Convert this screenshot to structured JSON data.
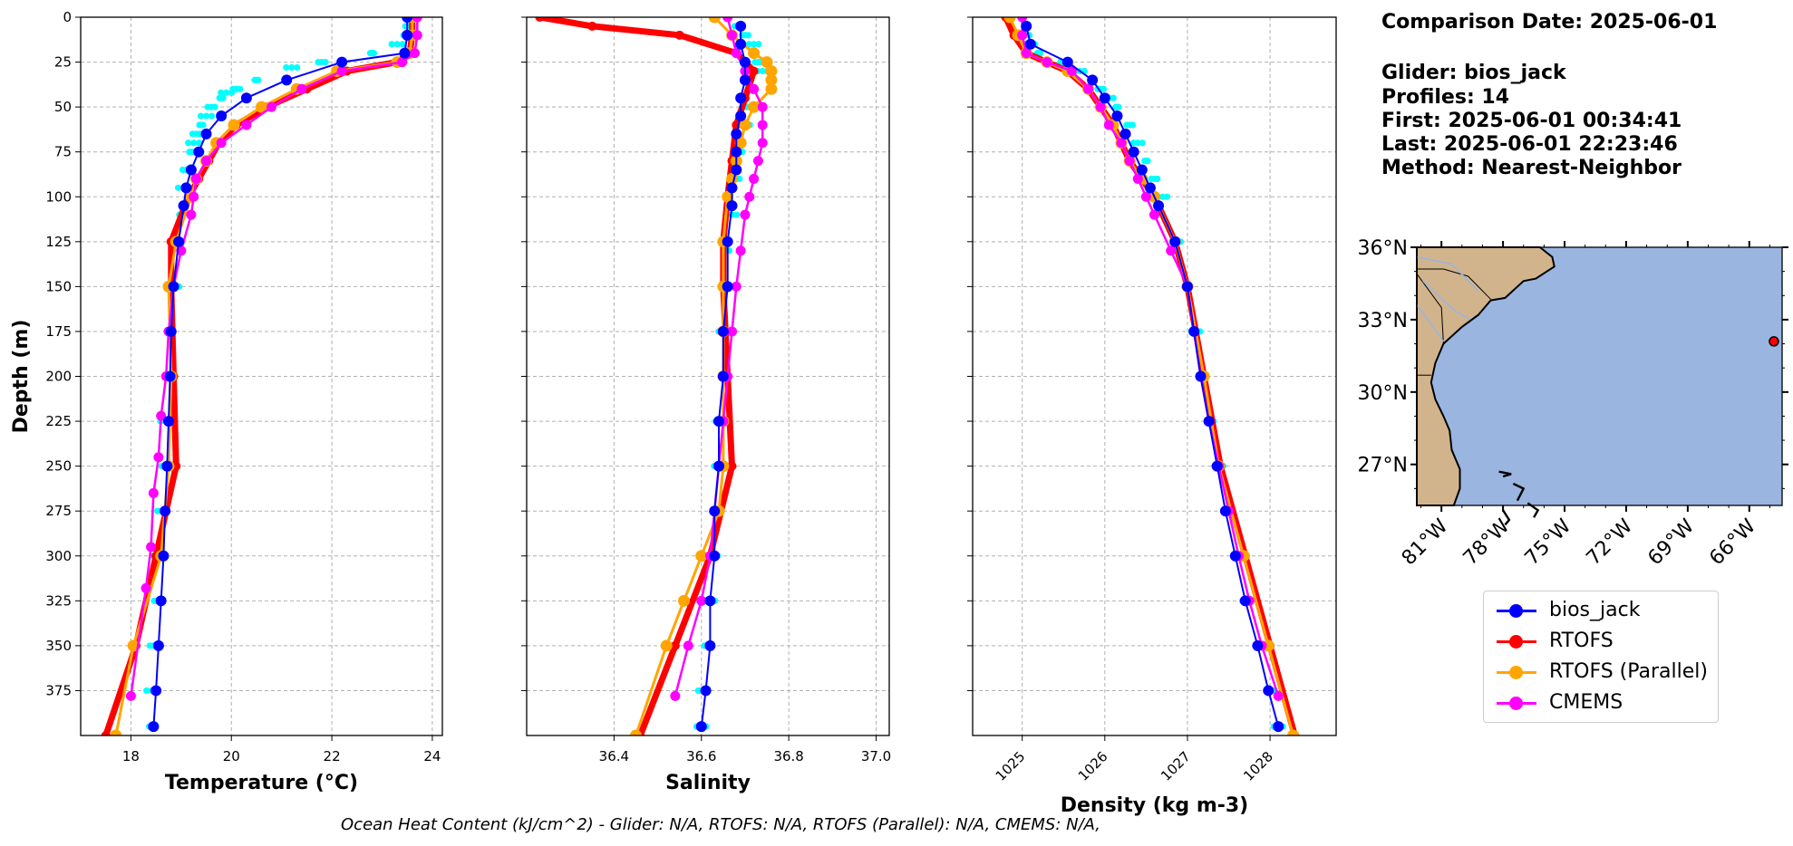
{
  "info": {
    "comparison_date": "Comparison Date: 2025-06-01",
    "glider": "Glider: bios_jack",
    "profiles": "Profiles: 14",
    "first": "First: 2025-06-01 00:34:41",
    "last": "Last: 2025-06-01 22:23:46",
    "method": "Method: Nearest-Neighbor"
  },
  "footer": "Ocean Heat Content (kJ/cm^2) - Glider: N/A,  RTOFS: N/A,  RTOFS (Parallel): N/A,  CMEMS: N/A,",
  "legend": [
    {
      "name": "bios_jack",
      "color": "#0000ff"
    },
    {
      "name": "RTOFS",
      "color": "#ff0000"
    },
    {
      "name": "RTOFS (Parallel)",
      "color": "#ffa500"
    },
    {
      "name": "CMEMS",
      "color": "#ff00ff"
    }
  ],
  "colors": {
    "glider_scatter": "#00ffff",
    "land": "#d2b48c",
    "ocean": "#9ab5e0",
    "grid": "#b0b0b0"
  },
  "chart_data": [
    {
      "type": "line",
      "xlabel": "Temperature (°C)",
      "ylabel": "Depth (m)",
      "xlim": [
        17,
        24.2
      ],
      "ylim": [
        400,
        0
      ],
      "xticks": [
        18,
        20,
        22,
        24
      ],
      "yticks": [
        0,
        25,
        50,
        75,
        100,
        125,
        150,
        175,
        200,
        225,
        250,
        275,
        300,
        325,
        350,
        375
      ],
      "grid": true,
      "scatter": {
        "name": "bios_jack profiles",
        "depth": [
          5,
          10,
          15,
          20,
          25,
          28,
          35,
          40,
          42,
          45,
          50,
          55,
          60,
          65,
          70,
          75,
          85,
          95,
          110,
          125,
          150,
          175,
          200,
          225,
          250,
          275,
          300,
          325,
          350,
          375,
          395
        ],
        "x": [
          23.5,
          23.5,
          23.3,
          22.8,
          21.8,
          21.2,
          20.5,
          20.1,
          19.9,
          19.8,
          19.6,
          19.5,
          19.4,
          19.3,
          19.25,
          19.2,
          19.1,
          19.05,
          19.0,
          18.95,
          18.85,
          18.8,
          18.75,
          18.7,
          18.65,
          18.6,
          18.55,
          18.5,
          18.45,
          18.42,
          18.4
        ]
      },
      "series": [
        {
          "name": "bios_jack",
          "depth": [
            0,
            10,
            20,
            25,
            35,
            45,
            55,
            65,
            75,
            85,
            95,
            105,
            125,
            150,
            175,
            200,
            225,
            250,
            275,
            300,
            325,
            350,
            375,
            395
          ],
          "values": [
            23.5,
            23.5,
            23.45,
            22.2,
            21.1,
            20.3,
            19.8,
            19.5,
            19.35,
            19.2,
            19.1,
            19.05,
            18.95,
            18.85,
            18.8,
            18.78,
            18.75,
            18.72,
            18.68,
            18.65,
            18.6,
            18.55,
            18.5,
            18.45
          ]
        },
        {
          "name": "RTOFS",
          "depth": [
            0,
            10,
            20,
            25,
            30,
            40,
            50,
            60,
            70,
            80,
            90,
            100,
            125,
            150,
            200,
            250,
            300,
            350,
            400
          ],
          "values": [
            23.6,
            23.6,
            23.55,
            23.3,
            22.3,
            21.5,
            20.7,
            20.1,
            19.75,
            19.55,
            19.35,
            19.15,
            18.8,
            18.8,
            18.85,
            18.9,
            18.5,
            18.1,
            17.5
          ]
        },
        {
          "name": "RTOFS (Parallel)",
          "depth": [
            0,
            10,
            20,
            25,
            30,
            40,
            50,
            60,
            70,
            80,
            90,
            100,
            125,
            150,
            200,
            250,
            300,
            350,
            400
          ],
          "values": [
            23.6,
            23.6,
            23.55,
            23.3,
            22.1,
            21.3,
            20.6,
            20.05,
            19.7,
            19.5,
            19.3,
            19.2,
            18.9,
            18.75,
            18.8,
            18.75,
            18.6,
            18.05,
            17.7
          ]
        },
        {
          "name": "CMEMS",
          "depth": [
            0,
            10,
            20,
            25,
            30,
            40,
            50,
            60,
            70,
            80,
            90,
            100,
            110,
            130,
            150,
            175,
            200,
            222,
            245,
            265,
            295,
            318,
            378
          ],
          "values": [
            23.7,
            23.7,
            23.65,
            23.4,
            22.2,
            21.4,
            20.8,
            20.3,
            19.8,
            19.5,
            19.3,
            19.25,
            19.2,
            19.0,
            18.85,
            18.75,
            18.7,
            18.6,
            18.55,
            18.45,
            18.4,
            18.3,
            18.0
          ]
        }
      ]
    },
    {
      "type": "line",
      "xlabel": "Salinity",
      "ylabel": "",
      "xlim": [
        36.2,
        37.03
      ],
      "ylim": [
        400,
        0
      ],
      "xticks": [
        36.4,
        36.6,
        36.8,
        37.0
      ],
      "yticks": [
        0,
        25,
        50,
        75,
        100,
        125,
        150,
        175,
        200,
        225,
        250,
        275,
        300,
        325,
        350,
        375
      ],
      "grid": true,
      "scatter": {
        "name": "bios_jack profiles",
        "depth": [
          5,
          10,
          15,
          20,
          25,
          30,
          40,
          50,
          60,
          75,
          90,
          110,
          130,
          150,
          175,
          200,
          225,
          250,
          275,
          300,
          325,
          350,
          375,
          395
        ],
        "x": [
          36.68,
          36.7,
          36.72,
          36.72,
          36.73,
          36.74,
          36.72,
          36.71,
          36.7,
          36.69,
          36.68,
          36.67,
          36.66,
          36.66,
          36.65,
          36.65,
          36.64,
          36.64,
          36.63,
          36.63,
          36.62,
          36.61,
          36.6,
          36.6
        ]
      },
      "series": [
        {
          "name": "bios_jack",
          "depth": [
            5,
            15,
            25,
            35,
            45,
            55,
            65,
            75,
            85,
            95,
            105,
            125,
            150,
            175,
            200,
            225,
            250,
            275,
            300,
            325,
            350,
            375,
            395
          ],
          "values": [
            36.69,
            36.69,
            36.7,
            36.7,
            36.69,
            36.69,
            36.68,
            36.68,
            36.68,
            36.67,
            36.67,
            36.66,
            36.66,
            36.65,
            36.65,
            36.64,
            36.64,
            36.63,
            36.63,
            36.62,
            36.62,
            36.61,
            36.6
          ]
        },
        {
          "name": "RTOFS",
          "depth": [
            0,
            5,
            10,
            20,
            30,
            45,
            60,
            80,
            100,
            125,
            150,
            200,
            250,
            300,
            350,
            400
          ],
          "values": [
            36.23,
            36.35,
            36.55,
            36.68,
            36.72,
            36.7,
            36.68,
            36.67,
            36.66,
            36.65,
            36.65,
            36.66,
            36.67,
            36.62,
            36.54,
            36.46
          ]
        },
        {
          "name": "RTOFS (Parallel)",
          "depth": [
            0,
            10,
            20,
            25,
            30,
            35,
            40,
            50,
            60,
            70,
            80,
            90,
            100,
            125,
            150,
            175,
            200,
            225,
            250,
            275,
            300,
            325,
            350,
            400
          ],
          "values": [
            36.63,
            36.67,
            36.72,
            36.75,
            36.76,
            36.76,
            36.76,
            36.72,
            36.7,
            36.69,
            36.68,
            36.67,
            36.66,
            36.65,
            36.65,
            36.65,
            36.65,
            36.65,
            36.65,
            36.64,
            36.6,
            36.56,
            36.52,
            36.45
          ]
        },
        {
          "name": "CMEMS",
          "depth": [
            0,
            10,
            20,
            30,
            40,
            50,
            60,
            70,
            80,
            90,
            100,
            110,
            130,
            150,
            175,
            200,
            225,
            250,
            275,
            300,
            325,
            350,
            378
          ],
          "values": [
            36.66,
            36.67,
            36.68,
            36.7,
            36.72,
            36.74,
            36.74,
            36.74,
            36.73,
            36.72,
            36.71,
            36.7,
            36.69,
            36.68,
            36.67,
            36.66,
            36.65,
            36.64,
            36.63,
            36.62,
            36.6,
            36.57,
            36.54
          ]
        }
      ]
    },
    {
      "type": "line",
      "xlabel": "Density (kg m-3)",
      "ylabel": "",
      "xlim": [
        1024.4,
        1028.8
      ],
      "ylim": [
        400,
        0
      ],
      "xticks": [
        1025,
        1026,
        1027,
        1028
      ],
      "yticks": [
        0,
        25,
        50,
        75,
        100,
        125,
        150,
        175,
        200,
        225,
        250,
        275,
        300,
        325,
        350,
        375
      ],
      "grid": true,
      "scatter": {
        "name": "bios_jack profiles",
        "depth": [
          5,
          10,
          15,
          20,
          25,
          30,
          35,
          40,
          45,
          50,
          60,
          70,
          80,
          90,
          100,
          125,
          150,
          175,
          200,
          225,
          250,
          275,
          300,
          325,
          350,
          375,
          395
        ],
        "x": [
          1025.05,
          1025.05,
          1025.1,
          1025.2,
          1025.5,
          1025.7,
          1025.85,
          1025.95,
          1026.05,
          1026.15,
          1026.3,
          1026.4,
          1026.5,
          1026.6,
          1026.7,
          1026.9,
          1027.0,
          1027.1,
          1027.18,
          1027.28,
          1027.38,
          1027.48,
          1027.6,
          1027.72,
          1027.85,
          1028.0,
          1028.1
        ]
      },
      "series": [
        {
          "name": "bios_jack",
          "depth": [
            5,
            15,
            25,
            35,
            45,
            55,
            65,
            75,
            85,
            95,
            105,
            125,
            150,
            175,
            200,
            225,
            250,
            275,
            300,
            325,
            350,
            375,
            395
          ],
          "values": [
            1025.05,
            1025.1,
            1025.55,
            1025.85,
            1026.0,
            1026.15,
            1026.25,
            1026.35,
            1026.45,
            1026.55,
            1026.65,
            1026.85,
            1027.0,
            1027.08,
            1027.16,
            1027.26,
            1027.36,
            1027.46,
            1027.58,
            1027.7,
            1027.85,
            1027.98,
            1028.1
          ]
        },
        {
          "name": "RTOFS",
          "depth": [
            0,
            10,
            20,
            25,
            30,
            40,
            50,
            60,
            70,
            80,
            90,
            100,
            125,
            150,
            200,
            250,
            300,
            350,
            400
          ],
          "values": [
            1024.8,
            1024.9,
            1025.05,
            1025.3,
            1025.55,
            1025.8,
            1025.95,
            1026.1,
            1026.2,
            1026.3,
            1026.45,
            1026.6,
            1026.85,
            1027.0,
            1027.2,
            1027.4,
            1027.7,
            1028.0,
            1028.3
          ]
        },
        {
          "name": "RTOFS (Parallel)",
          "depth": [
            0,
            10,
            20,
            25,
            30,
            40,
            50,
            60,
            70,
            80,
            90,
            100,
            125,
            150,
            200,
            250,
            300,
            350,
            400
          ],
          "values": [
            1024.85,
            1024.95,
            1025.05,
            1025.3,
            1025.55,
            1025.8,
            1025.95,
            1026.1,
            1026.2,
            1026.3,
            1026.45,
            1026.6,
            1026.85,
            1027.0,
            1027.2,
            1027.38,
            1027.68,
            1027.98,
            1028.28
          ]
        },
        {
          "name": "CMEMS",
          "depth": [
            0,
            10,
            20,
            25,
            30,
            40,
            50,
            60,
            70,
            80,
            90,
            100,
            110,
            130,
            150,
            175,
            200,
            225,
            250,
            275,
            300,
            325,
            350,
            378
          ],
          "values": [
            1025.0,
            1025.0,
            1025.05,
            1025.3,
            1025.6,
            1025.8,
            1025.95,
            1026.05,
            1026.2,
            1026.3,
            1026.4,
            1026.5,
            1026.6,
            1026.8,
            1027.0,
            1027.08,
            1027.16,
            1027.26,
            1027.38,
            1027.5,
            1027.62,
            1027.75,
            1027.9,
            1028.1
          ]
        }
      ]
    }
  ],
  "map": {
    "lat_labels": [
      "36°N",
      "33°N",
      "30°N",
      "27°N"
    ],
    "lat_values": [
      36,
      33,
      30,
      27
    ],
    "lon_labels": [
      "81°W",
      "78°W",
      "75°W",
      "72°W",
      "69°W",
      "66°W"
    ],
    "lon_values": [
      -81,
      -78,
      -75,
      -72,
      -69,
      -66
    ],
    "extent": {
      "lon_min": -82.2,
      "lon_max": -64.4,
      "lat_min": 25.3,
      "lat_max": 36
    },
    "glider_position": {
      "lat": 32.1,
      "lon": -64.8
    }
  }
}
